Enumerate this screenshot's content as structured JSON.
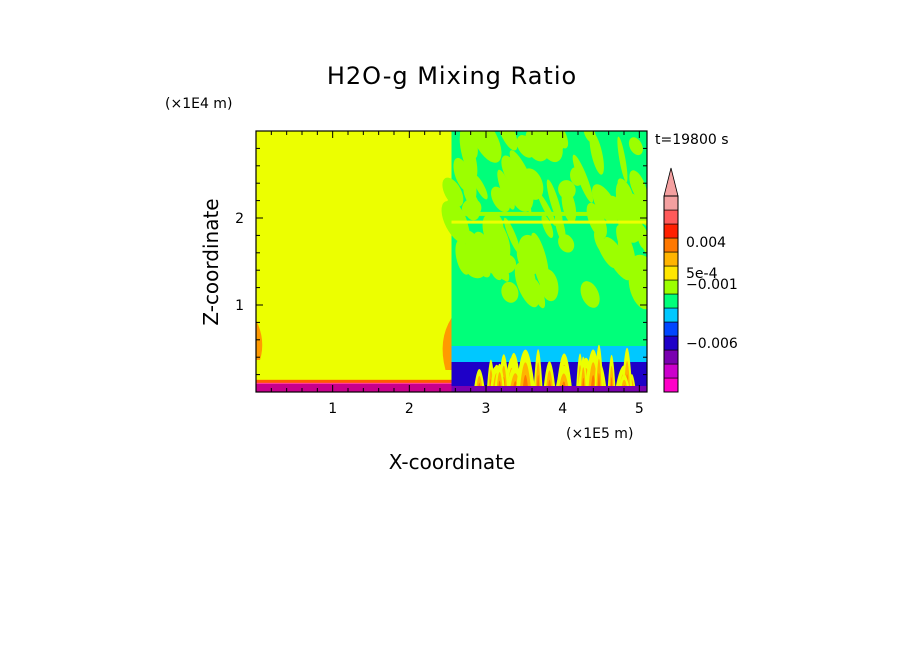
{
  "chart_data": {
    "type": "heatmap",
    "title": "H2O-g Mixing Ratio",
    "xlabel": "X-coordinate",
    "ylabel": "Z-coordinate",
    "x_unit": "(×1E5 m)",
    "y_unit": "(×1E4 m)",
    "time_label": "t=19800 s",
    "xlim": [
      0,
      5.1
    ],
    "ylim": [
      0,
      3.0
    ],
    "x_ticks": [
      1,
      2,
      3,
      4,
      5
    ],
    "y_ticks": [
      1,
      2
    ],
    "colorbar": {
      "colors": [
        "#ff00c8",
        "#cc00cc",
        "#7a00b0",
        "#1e00c8",
        "#0046ff",
        "#00c8ff",
        "#00ff7a",
        "#9cff00",
        "#ffe600",
        "#ffb400",
        "#ff7800",
        "#ff2000",
        "#ff5a5a",
        "#f4a0a0"
      ],
      "labels": [
        {
          "text": "0.004",
          "level": 10.7
        },
        {
          "text": "5e-4",
          "level": 8.5
        },
        {
          "text": "−0.001",
          "level": 7.7
        },
        {
          "text": "−0.006",
          "level": 3.5
        }
      ],
      "extend": "max"
    },
    "regions": {
      "left_fill_color": "#ecff00",
      "divider_x": 2.55,
      "surface_layer_top": 0.14,
      "surface_layer_color": "#c8008c"
    }
  }
}
